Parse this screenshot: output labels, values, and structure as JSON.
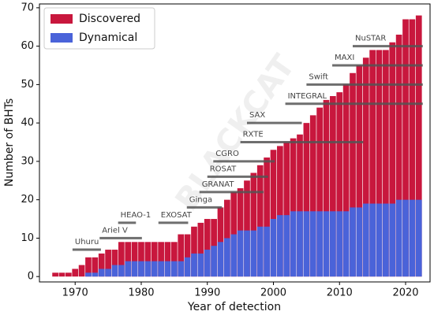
{
  "chart_data": {
    "type": "bar",
    "overlay": true,
    "x_label": "Year of detection",
    "y_label": "Number of BHTs",
    "watermark": "BLACKCAT",
    "x": [
      1967,
      1968,
      1969,
      1970,
      1971,
      1972,
      1973,
      1974,
      1975,
      1976,
      1977,
      1978,
      1979,
      1980,
      1981,
      1982,
      1983,
      1984,
      1985,
      1986,
      1987,
      1988,
      1989,
      1990,
      1991,
      1992,
      1993,
      1994,
      1995,
      1996,
      1997,
      1998,
      1999,
      2000,
      2001,
      2002,
      2003,
      2004,
      2005,
      2006,
      2007,
      2008,
      2009,
      2010,
      2011,
      2012,
      2013,
      2014,
      2015,
      2016,
      2017,
      2018,
      2019,
      2020,
      2021,
      2022
    ],
    "series": [
      {
        "name": "Discovered",
        "color": "#c8173d",
        "values": [
          1,
          1,
          1,
          2,
          3,
          5,
          5,
          6,
          7,
          7,
          9,
          9,
          9,
          9,
          9,
          9,
          9,
          9,
          9,
          11,
          11,
          13,
          14,
          15,
          15,
          18,
          20,
          22,
          23,
          25,
          27,
          29,
          31,
          33,
          34,
          35,
          36,
          37,
          40,
          42,
          44,
          46,
          47,
          48,
          50,
          53,
          55,
          57,
          59,
          59,
          59,
          61,
          63,
          67,
          67,
          68
        ]
      },
      {
        "name": "Dynamical",
        "color": "#4a63d9",
        "values": [
          0,
          0,
          0,
          0,
          0,
          1,
          1,
          2,
          2,
          3,
          3,
          4,
          4,
          4,
          4,
          4,
          4,
          4,
          4,
          4,
          5,
          6,
          6,
          7,
          8,
          9,
          10,
          11,
          12,
          12,
          12,
          13,
          13,
          15,
          16,
          16,
          17,
          17,
          17,
          17,
          17,
          17,
          17,
          17,
          17,
          18,
          18,
          19,
          19,
          19,
          19,
          19,
          20,
          20,
          20,
          20
        ]
      }
    ],
    "missions": [
      {
        "name": "Uhuru",
        "start": 1969.6,
        "end": 1973.9,
        "level": 7
      },
      {
        "name": "Ariel V",
        "start": 1973.7,
        "end": 1980.1,
        "level": 10
      },
      {
        "name": "HEAO-1",
        "start": 1976.5,
        "end": 1979.2,
        "level": 14
      },
      {
        "name": "EXOSAT",
        "start": 1982.6,
        "end": 1987.1,
        "level": 14
      },
      {
        "name": "Ginga",
        "start": 1986.9,
        "end": 1992.2,
        "level": 18
      },
      {
        "name": "GRANAT",
        "start": 1988.8,
        "end": 1998.5,
        "level": 22
      },
      {
        "name": "ROSAT",
        "start": 1990,
        "end": 1999.2,
        "level": 26
      },
      {
        "name": "CGRO",
        "start": 1990.9,
        "end": 2000.2,
        "level": 30
      },
      {
        "name": "RXTE",
        "start": 1995,
        "end": 2013.6,
        "level": 35
      },
      {
        "name": "SAX",
        "start": 1996,
        "end": 2004.3,
        "level": 40
      },
      {
        "name": "INTEGRAL",
        "start": 2001.8,
        "end": 2022.6,
        "level": 45
      },
      {
        "name": "Swift",
        "start": 2005,
        "end": 2022.6,
        "level": 50
      },
      {
        "name": "MAXI",
        "start": 2008.9,
        "end": 2022.6,
        "level": 55
      },
      {
        "name": "NuSTAR",
        "start": 2012,
        "end": 2022.6,
        "level": 60
      }
    ],
    "xlim": [
      1964.6,
      2023.7
    ],
    "ylim": [
      -1.4,
      71
    ],
    "xticks": [
      1970,
      1980,
      1990,
      2000,
      2010,
      2020
    ],
    "yticks": [
      0,
      10,
      20,
      30,
      40,
      50,
      60,
      70
    ],
    "legend": "upper left"
  }
}
